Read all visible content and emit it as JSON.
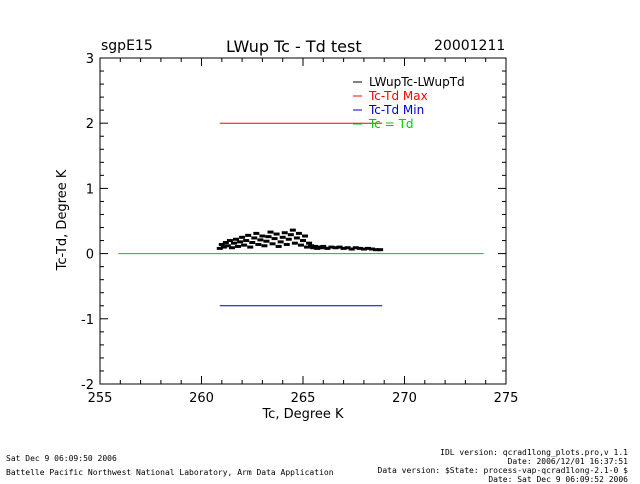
{
  "header": {
    "site": "sgpE15",
    "title": "LWup Tc - Td test",
    "date": "20001211"
  },
  "footer": {
    "left_line1": "Sat Dec  9 06:09:50 2006",
    "left_line2": "Battelle Pacific Northwest National Laboratory, Arm Data Application",
    "right_lines": [
      "IDL version: qcrad1long_plots.pro,v 1.1",
      "Date: 2006/12/01 16:37:51",
      "Data version: $State: process-vap-qcrad1long-2.1-0 $",
      "Date: Sat Dec  9 06:09:52 2006"
    ]
  },
  "colors": {
    "data": "#000000",
    "max": "#ff0000",
    "min": "#0000cc",
    "equal": "#00cc00"
  },
  "chart_data": {
    "type": "scatter",
    "xlabel": "Tc, Degree K",
    "ylabel": "Tc-Td, Degree K",
    "xlim": [
      255,
      275
    ],
    "ylim": [
      -2,
      3
    ],
    "xticks": [
      255,
      260,
      265,
      270,
      275
    ],
    "yticks": [
      -2,
      -1,
      0,
      1,
      2,
      3
    ],
    "legend_position": "top-right",
    "legend": [
      {
        "label": "LWupTc-LWupTd",
        "color": "#000000"
      },
      {
        "label": "Tc-Td Max",
        "color": "#ff0000"
      },
      {
        "label": "Tc-Td Min",
        "color": "#0000cc"
      },
      {
        "label": "Tc = Td",
        "color": "#00cc00"
      }
    ],
    "series": [
      {
        "name": "LWupTc-LWupTd",
        "type": "scatter",
        "points": [
          [
            260.9,
            0.08
          ],
          [
            261.0,
            0.14
          ],
          [
            261.1,
            0.1
          ],
          [
            261.2,
            0.17
          ],
          [
            261.3,
            0.12
          ],
          [
            261.4,
            0.2
          ],
          [
            261.5,
            0.09
          ],
          [
            261.6,
            0.16
          ],
          [
            261.7,
            0.22
          ],
          [
            261.8,
            0.11
          ],
          [
            261.9,
            0.18
          ],
          [
            262.0,
            0.25
          ],
          [
            262.1,
            0.13
          ],
          [
            262.2,
            0.2
          ],
          [
            262.3,
            0.28
          ],
          [
            262.4,
            0.1
          ],
          [
            262.5,
            0.17
          ],
          [
            262.6,
            0.24
          ],
          [
            262.7,
            0.31
          ],
          [
            262.8,
            0.14
          ],
          [
            262.9,
            0.21
          ],
          [
            263.0,
            0.27
          ],
          [
            263.1,
            0.12
          ],
          [
            263.2,
            0.19
          ],
          [
            263.3,
            0.26
          ],
          [
            263.4,
            0.33
          ],
          [
            263.5,
            0.15
          ],
          [
            263.6,
            0.23
          ],
          [
            263.7,
            0.3
          ],
          [
            263.8,
            0.11
          ],
          [
            263.9,
            0.18
          ],
          [
            264.0,
            0.25
          ],
          [
            264.1,
            0.32
          ],
          [
            264.2,
            0.14
          ],
          [
            264.3,
            0.22
          ],
          [
            264.4,
            0.29
          ],
          [
            264.5,
            0.36
          ],
          [
            264.6,
            0.16
          ],
          [
            264.7,
            0.24
          ],
          [
            264.8,
            0.31
          ],
          [
            264.9,
            0.13
          ],
          [
            265.0,
            0.2
          ],
          [
            265.1,
            0.27
          ],
          [
            265.2,
            0.1
          ],
          [
            265.3,
            0.16
          ],
          [
            265.4,
            0.12
          ],
          [
            265.5,
            0.09
          ],
          [
            265.6,
            0.11
          ],
          [
            265.7,
            0.08
          ],
          [
            265.8,
            0.1
          ],
          [
            265.9,
            0.09
          ],
          [
            266.0,
            0.11
          ],
          [
            266.2,
            0.08
          ],
          [
            266.4,
            0.1
          ],
          [
            266.6,
            0.09
          ],
          [
            266.8,
            0.1
          ],
          [
            267.0,
            0.08
          ],
          [
            267.2,
            0.09
          ],
          [
            267.4,
            0.07
          ],
          [
            267.6,
            0.09
          ],
          [
            267.8,
            0.08
          ],
          [
            268.0,
            0.07
          ],
          [
            268.2,
            0.08
          ],
          [
            268.4,
            0.07
          ],
          [
            268.6,
            0.06
          ],
          [
            268.8,
            0.06
          ]
        ]
      },
      {
        "name": "Tc-Td Max",
        "type": "line",
        "x": [
          260.9,
          268.9
        ],
        "y": [
          2.0,
          2.0
        ]
      },
      {
        "name": "Tc-Td Min",
        "type": "line",
        "x": [
          260.9,
          268.9
        ],
        "y": [
          -0.8,
          -0.8
        ]
      },
      {
        "name": "Tc = Td",
        "type": "line",
        "x": [
          255.9,
          273.9
        ],
        "y": [
          0.0,
          0.0
        ]
      }
    ]
  }
}
